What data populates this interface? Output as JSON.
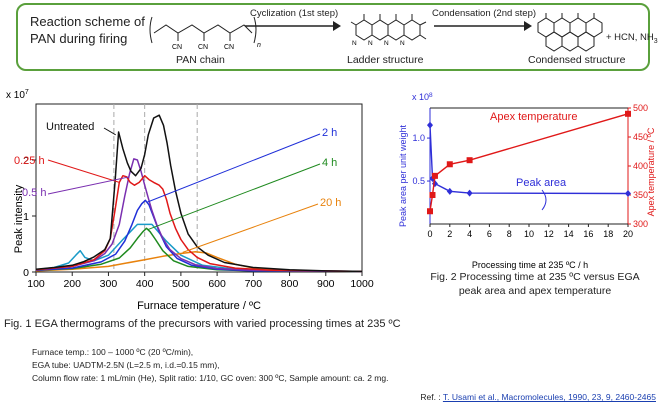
{
  "scheme": {
    "title_line1": "Reaction scheme of",
    "title_line2": "PAN during firing",
    "step1": "Cyclization (1st step)",
    "step2": "Condensation (2nd step)",
    "pan_label": "PAN chain",
    "ladder_label": "Ladder structure",
    "condensed_label": "Condensed structure",
    "byproducts": "+ HCN, NH",
    "byproducts_sub": "3",
    "cn": "CN",
    "n_sub": "n"
  },
  "fig1": {
    "caption": "Fig. 1 EGA thermograms of the precursors with varied processing times at 235 ºC",
    "conditions": [
      "Furnace temp.: 100 – 1000 ºC (20 ºC/min),",
      "EGA tube: UADTM-2.5N (L=2.5 m, i.d.=0.15 mm),",
      "Column flow rate: 1 mL/min (He), Split ratio: 1/10, GC oven: 300 ºC, Sample amount: ca. 2 mg."
    ]
  },
  "fig2": {
    "caption_line1": "Fig. 2 Processing time at 235 ºC versus EGA",
    "caption_line2": "peak area and apex temperature"
  },
  "reference": {
    "prefix": "Ref. :",
    "link": "T. Usami et al., Macromolecules, 1990, 23, 9, 2460-2465"
  },
  "colors": {
    "scheme_border": "#5aa03c",
    "untreated": "#111111",
    "h0_25": "#e01818",
    "h0_5": "#7a2fb0",
    "h2": "#1f2fd8",
    "h4": "#1f8a1f",
    "h20": "#e8820c",
    "extra": "#1a9bc8",
    "peak_area": "#2f2fd8",
    "apex": "#e01818"
  },
  "chart_data": [
    {
      "type": "line",
      "xlabel": "Furnace temperature / ºC",
      "ylabel": "Peak intensity",
      "y_multiplier": "x 10",
      "y_multiplier_exp": "7",
      "xlim": [
        100,
        1000
      ],
      "ylim": [
        0,
        3.0
      ],
      "xticks": [
        100,
        200,
        300,
        400,
        500,
        600,
        700,
        800,
        900,
        1000
      ],
      "yticks": [
        0,
        1,
        2
      ],
      "dashed_reference_lines_x": [
        315,
        400,
        545
      ],
      "series": [
        {
          "name": "Untreated",
          "color": "#111111",
          "x": [
            100,
            150,
            200,
            230,
            260,
            290,
            305,
            318,
            328,
            340,
            352,
            362,
            375,
            390,
            400,
            410,
            425,
            440,
            452,
            462,
            472,
            485,
            500,
            520,
            545,
            575,
            620,
            700,
            800,
            900,
            1000
          ],
          "y": [
            0.05,
            0.08,
            0.12,
            0.18,
            0.27,
            0.4,
            0.6,
            1.6,
            2.5,
            2.2,
            1.95,
            1.8,
            1.72,
            1.85,
            2.1,
            2.45,
            2.75,
            2.8,
            2.62,
            2.3,
            1.9,
            1.45,
            1.05,
            0.68,
            0.45,
            0.3,
            0.17,
            0.08,
            0.04,
            0.02,
            0.01
          ]
        },
        {
          "name": "0.25 h",
          "color": "#e01818",
          "x": [
            100,
            200,
            260,
            290,
            305,
            318,
            330,
            340,
            350,
            360,
            372,
            385,
            400,
            412,
            425,
            440,
            450,
            460,
            470,
            485,
            500,
            520,
            545,
            580,
            650,
            750,
            1000
          ],
          "y": [
            0.04,
            0.1,
            0.22,
            0.38,
            0.6,
            1.1,
            1.6,
            1.72,
            1.7,
            1.6,
            1.55,
            1.6,
            1.72,
            1.65,
            1.6,
            1.55,
            1.48,
            1.3,
            1.05,
            0.78,
            0.58,
            0.4,
            0.26,
            0.15,
            0.07,
            0.03,
            0.01
          ]
        },
        {
          "name": "0.5 h",
          "color": "#7a2fb0",
          "x": [
            100,
            200,
            260,
            290,
            310,
            330,
            345,
            358,
            370,
            380,
            390,
            400,
            410,
            420,
            435,
            450,
            470,
            500,
            540,
            600,
            700,
            1000
          ],
          "y": [
            0.04,
            0.1,
            0.2,
            0.33,
            0.5,
            0.85,
            1.35,
            1.75,
            2.02,
            2.0,
            1.8,
            1.55,
            1.32,
            1.1,
            0.82,
            0.6,
            0.4,
            0.24,
            0.13,
            0.06,
            0.03,
            0.01
          ]
        },
        {
          "name": "2 h",
          "color": "#1f2fd8",
          "x": [
            100,
            200,
            280,
            320,
            345,
            365,
            380,
            392,
            402,
            412,
            425,
            440,
            460,
            490,
            530,
            600,
            700,
            1000
          ],
          "y": [
            0.03,
            0.07,
            0.18,
            0.32,
            0.55,
            0.85,
            1.1,
            1.22,
            1.28,
            1.2,
            0.98,
            0.72,
            0.45,
            0.24,
            0.12,
            0.05,
            0.02,
            0.01
          ]
        },
        {
          "name": "4 h",
          "color": "#1f8a1f",
          "x": [
            100,
            200,
            280,
            330,
            360,
            380,
            395,
            405,
            415,
            430,
            450,
            480,
            520,
            600,
            700,
            1000
          ],
          "y": [
            0.03,
            0.06,
            0.14,
            0.25,
            0.43,
            0.6,
            0.72,
            0.78,
            0.72,
            0.58,
            0.38,
            0.2,
            0.1,
            0.04,
            0.02,
            0.01
          ]
        },
        {
          "name": "20 h",
          "color": "#e8820c",
          "x": [
            100,
            200,
            300,
            350,
            400,
            450,
            500,
            540,
            570,
            600,
            650,
            700,
            800,
            900,
            1000
          ],
          "y": [
            0.02,
            0.05,
            0.1,
            0.16,
            0.22,
            0.28,
            0.33,
            0.36,
            0.34,
            0.26,
            0.14,
            0.07,
            0.03,
            0.015,
            0.01
          ]
        },
        {
          "name": "",
          "color": "#1a9bc8",
          "x": [
            100,
            150,
            190,
            210,
            222,
            235,
            260,
            300,
            340,
            380,
            420,
            460,
            500,
            560,
            650,
            800,
            1000
          ],
          "y": [
            0.04,
            0.08,
            0.16,
            0.3,
            0.38,
            0.26,
            0.2,
            0.3,
            0.58,
            0.85,
            0.85,
            0.55,
            0.3,
            0.12,
            0.05,
            0.02,
            0.01
          ]
        }
      ],
      "annotations": [
        "Untreated",
        "0.25 h",
        "0.5 h",
        "2 h",
        "4 h",
        "20 h"
      ]
    },
    {
      "type": "line",
      "xlabel": "Processing time at 235 ºC / h",
      "ylabel": "Peak area per unit weight",
      "y2label": "Apex temperature / ºC",
      "y_multiplier": "x 10",
      "y_multiplier_exp": "8",
      "xlim": [
        0,
        20
      ],
      "ylim": [
        0,
        1.35
      ],
      "y2lim": [
        300,
        500
      ],
      "xticks": [
        0,
        2,
        4,
        6,
        8,
        10,
        12,
        14,
        16,
        18,
        20
      ],
      "yticks": [
        0.5,
        1.0
      ],
      "y2ticks": [
        300,
        350,
        400,
        450,
        500
      ],
      "series": [
        {
          "name": "Peak area",
          "color": "#2f2fd8",
          "marker": "diamond",
          "axis": "left",
          "x": [
            0,
            0.25,
            0.5,
            2,
            4,
            20
          ],
          "y": [
            1.15,
            0.53,
            0.47,
            0.38,
            0.36,
            0.355
          ]
        },
        {
          "name": "Apex temperature",
          "color": "#e01818",
          "marker": "square",
          "axis": "right",
          "x": [
            0,
            0.25,
            0.5,
            2,
            4,
            20
          ],
          "y": [
            322,
            350,
            383,
            403,
            410,
            490
          ]
        }
      ]
    }
  ]
}
